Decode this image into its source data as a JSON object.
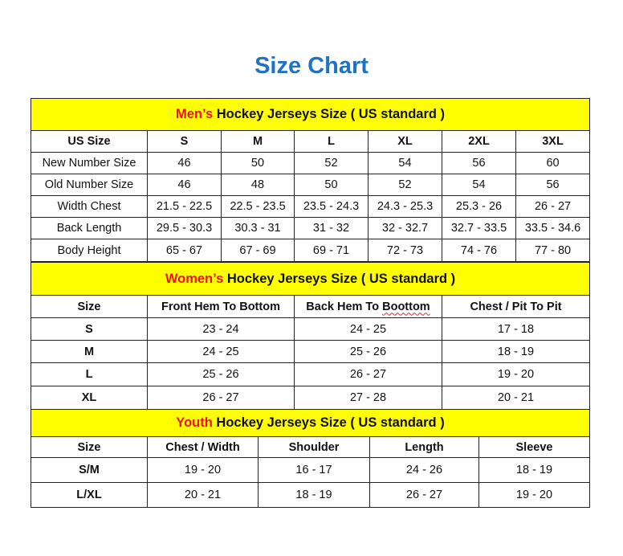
{
  "title": "Size Chart",
  "colors": {
    "title": "#1f73c1",
    "header_bg": "#ffff00",
    "accent": "#e8141c"
  },
  "mens": {
    "header_accent": "Men’s",
    "header_rest": " Hockey Jerseys Size ( US standard )",
    "columns": [
      "US Size",
      "S",
      "M",
      "L",
      "XL",
      "2XL",
      "3XL"
    ],
    "rows": [
      [
        "New Number Size",
        "46",
        "50",
        "52",
        "54",
        "56",
        "60"
      ],
      [
        "Old Number Size",
        "46",
        "48",
        "50",
        "52",
        "54",
        "56"
      ],
      [
        "Width Chest",
        "21.5 - 22.5",
        "22.5 - 23.5",
        "23.5 - 24.3",
        "24.3 - 25.3",
        "25.3 - 26",
        "26 - 27"
      ],
      [
        "Back Length",
        "29.5 - 30.3",
        "30.3 - 31",
        "31 - 32",
        "32 - 32.7",
        "32.7 - 33.5",
        "33.5 - 34.6"
      ],
      [
        "Body Height",
        "65 - 67",
        "67 - 69",
        "69 - 71",
        "72 - 73",
        "74 - 76",
        "77 - 80"
      ]
    ]
  },
  "womens": {
    "header_accent": "Women’s",
    "header_rest": " Hockey Jerseys Size ( US standard )",
    "columns": [
      "Size",
      "Front Hem To Bottom",
      "Back Hem To Boottom",
      "Chest / Pit To Pit"
    ],
    "rows": [
      [
        "S",
        "23 - 24",
        "24 - 25",
        "17 - 18"
      ],
      [
        "M",
        "24 - 25",
        "25 - 26",
        "18 - 19"
      ],
      [
        "L",
        "25 - 26",
        "26 - 27",
        "19 - 20"
      ],
      [
        "XL",
        "26 - 27",
        "27 - 28",
        "20 - 21"
      ]
    ]
  },
  "youth": {
    "header_accent": "Youth",
    "header_rest": " Hockey Jerseys Size ( US standard )",
    "columns": [
      "Size",
      "Chest / Width",
      "Shoulder",
      "Length",
      "Sleeve"
    ],
    "rows": [
      [
        "S/M",
        "19 - 20",
        "16 - 17",
        "24 - 26",
        "18 - 19"
      ],
      [
        "L/XL",
        "20 - 21",
        "18 - 19",
        "26 - 27",
        "19 - 20"
      ]
    ]
  }
}
